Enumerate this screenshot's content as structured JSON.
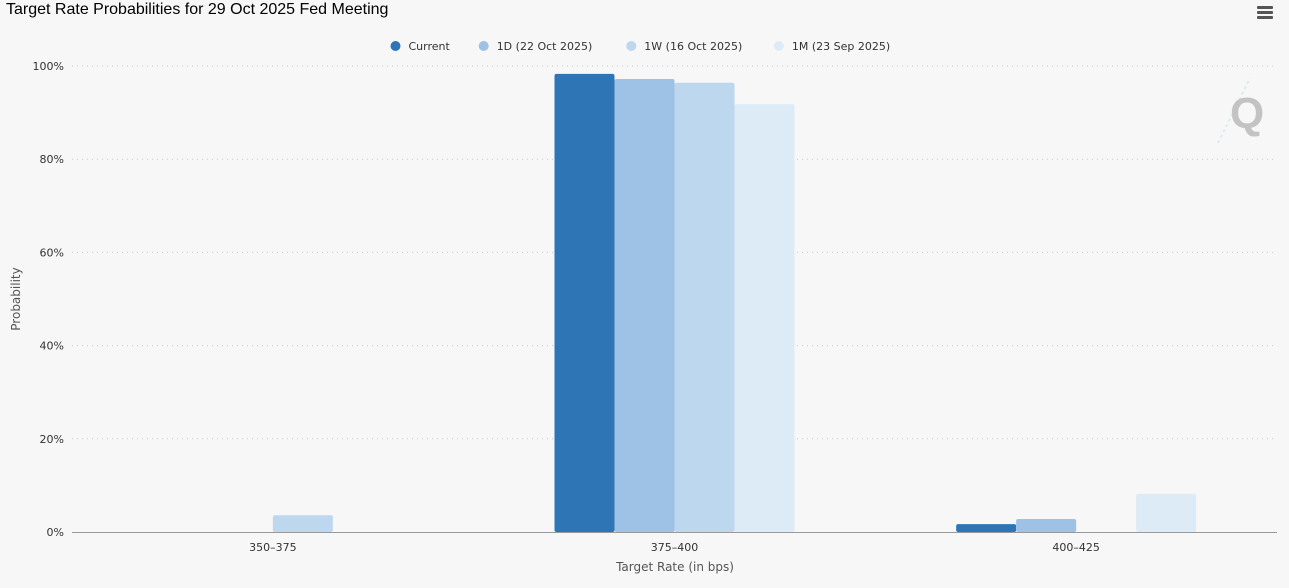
{
  "chart_data": {
    "type": "bar",
    "title": "Target Rate Probabilities for 29 Oct 2025 Fed Meeting",
    "xlabel": "Target Rate (in bps)",
    "ylabel": "Probability",
    "categories": [
      "350–375",
      "375–400",
      "400–425"
    ],
    "ylim": [
      0,
      100
    ],
    "y_ticks": [
      0,
      20,
      40,
      60,
      80,
      100
    ],
    "y_tick_suffix": "%",
    "grid": true,
    "legend_position": "top-center",
    "series": [
      {
        "name": "Current",
        "color": "#2e75b6",
        "values": [
          0,
          98.3,
          1.7
        ]
      },
      {
        "name": "1D (22 Oct 2025)",
        "color": "#9dc2e6",
        "values": [
          0,
          97.2,
          2.8
        ]
      },
      {
        "name": "1W (16 Oct 2025)",
        "color": "#bdd7ee",
        "values": [
          3.6,
          96.4,
          0
        ]
      },
      {
        "name": "1M (23 Sep 2025)",
        "color": "#ddebf7",
        "values": [
          0,
          91.8,
          8.2
        ]
      }
    ]
  },
  "icons": {
    "menu": "hamburger-menu-icon",
    "watermark": "q-logo-icon"
  }
}
